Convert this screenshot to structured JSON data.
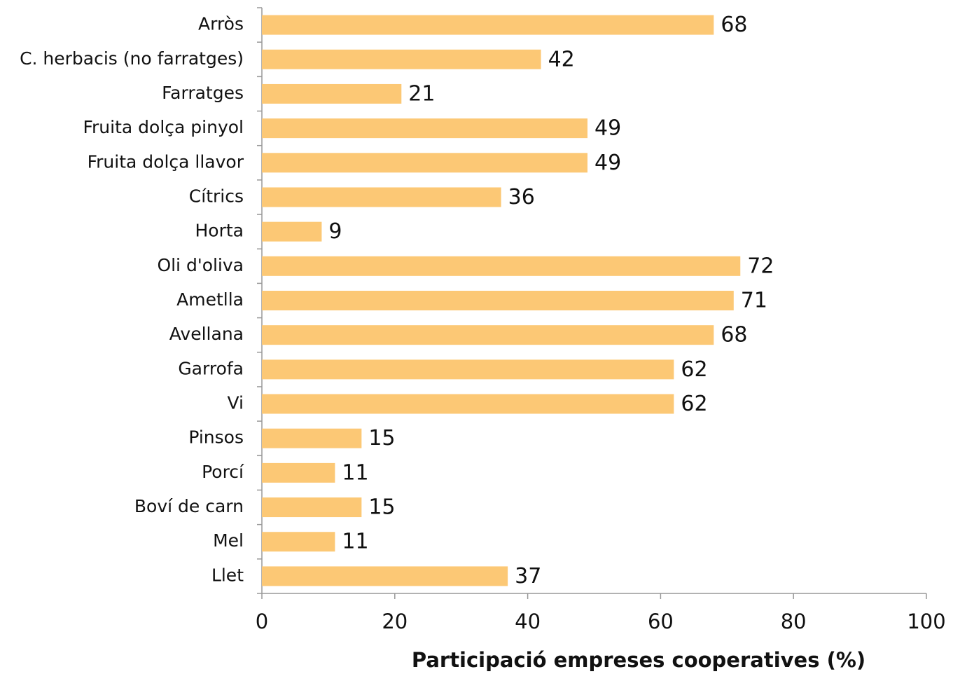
{
  "chart_data": {
    "type": "hbar",
    "xlabel": "Participació empreses cooperatives (%)",
    "categories": [
      "Arròs",
      "C. herbacis (no farratges)",
      "Farratges",
      "Fruita dolça pinyol",
      "Fruita dolça llavor",
      "Cítrics",
      "Horta",
      "Oli d'oliva",
      "Ametlla",
      "Avellana",
      "Garrofa",
      "Vi",
      "Pinsos",
      "Porcí",
      "Boví de carn",
      "Mel",
      "Llet"
    ],
    "values": [
      68,
      42,
      21,
      49,
      49,
      36,
      9,
      72,
      71,
      68,
      62,
      62,
      15,
      11,
      15,
      11,
      37
    ],
    "color": "#fcc875",
    "xlim": [
      0,
      100
    ],
    "xticks": [
      0,
      20,
      40,
      60,
      80,
      100
    ],
    "grid": false
  }
}
